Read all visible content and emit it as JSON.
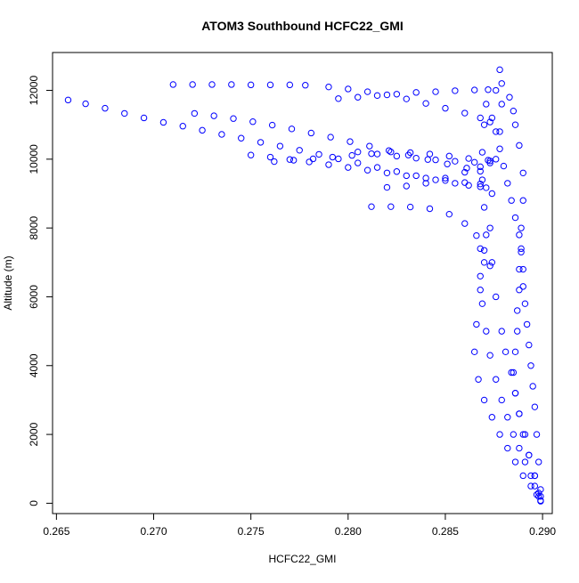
{
  "chart_data": {
    "type": "scatter",
    "title": "ATOM3 Southbound HCFC22_GMI",
    "xlabel": "HCFC22_GMI",
    "ylabel": "Altitude (m)",
    "xlim": [
      0.2648,
      0.2905
    ],
    "ylim": [
      -300,
      13100
    ],
    "x_ticks": [
      0.265,
      0.27,
      0.275,
      0.28,
      0.285,
      0.29
    ],
    "x_tick_labels": [
      "0.265",
      "0.270",
      "0.275",
      "0.280",
      "0.285",
      "0.290"
    ],
    "y_ticks": [
      0,
      2000,
      4000,
      6000,
      8000,
      10000,
      12000
    ],
    "y_tick_labels": [
      "0",
      "2000",
      "4000",
      "6000",
      "8000",
      "10000",
      "12000"
    ],
    "grid": false,
    "legend": "none",
    "marker": "open-circle",
    "color": "#0000ff",
    "series": [
      {
        "x": [
          0.2656,
          0.2665,
          0.2675,
          0.2685,
          0.2695,
          0.2705,
          0.2715,
          0.2725,
          0.2735,
          0.2745,
          0.2755,
          0.2765,
          0.2775,
          0.2785,
          0.2795,
          0.2805,
          0.2815,
          0.2825,
          0.2835,
          0.2845,
          0.2855,
          0.2862,
          0.2868,
          0.2871
        ],
        "y": [
          11720,
          11610,
          11480,
          11330,
          11200,
          11070,
          10960,
          10840,
          10720,
          10610,
          10490,
          10380,
          10260,
          10140,
          10010,
          9890,
          9760,
          9640,
          9520,
          9400,
          9300,
          9240,
          9200,
          9170
        ]
      },
      {
        "x": [
          0.271,
          0.272,
          0.273,
          0.274,
          0.275,
          0.276,
          0.277,
          0.2778,
          0.279,
          0.28,
          0.281,
          0.282,
          0.283,
          0.284,
          0.285,
          0.286,
          0.2868,
          0.2873
        ],
        "y": [
          12170,
          12170,
          12170,
          12170,
          12160,
          12160,
          12160,
          12150,
          12100,
          12040,
          11960,
          11870,
          11750,
          11620,
          11480,
          11340,
          11200,
          11080
        ]
      },
      {
        "x": [
          0.2721,
          0.2731,
          0.2741,
          0.2751,
          0.2761,
          0.2771,
          0.2781,
          0.2791,
          0.2801,
          0.2811,
          0.2821,
          0.2831,
          0.2841,
          0.2851,
          0.2861,
          0.2868
        ],
        "y": [
          11330,
          11260,
          11180,
          11090,
          10990,
          10880,
          10760,
          10640,
          10510,
          10380,
          10250,
          10120,
          9990,
          9860,
          9740,
          9650
        ]
      },
      {
        "x": [
          0.275,
          0.276,
          0.277,
          0.278,
          0.279,
          0.28,
          0.281,
          0.282,
          0.283,
          0.284,
          0.285,
          0.286,
          0.2868
        ],
        "y": [
          10120,
          10060,
          9990,
          9920,
          9840,
          9760,
          9680,
          9600,
          9520,
          9450,
          9380,
          9320,
          9280
        ]
      },
      {
        "x": [
          0.2762,
          0.2772,
          0.2782,
          0.2792,
          0.2802,
          0.2812,
          0.2822,
          0.2832,
          0.2842,
          0.2852,
          0.2862,
          0.2872
        ],
        "y": [
          9930,
          9970,
          10010,
          10060,
          10110,
          10160,
          10210,
          10190,
          10150,
          10090,
          10020,
          9970
        ]
      },
      {
        "x": [
          0.2795,
          0.2805,
          0.2815,
          0.2825,
          0.2835,
          0.2845,
          0.2855,
          0.2865,
          0.2872,
          0.2876
        ],
        "y": [
          11760,
          11800,
          11850,
          11890,
          11940,
          11960,
          11990,
          12010,
          12020,
          12000
        ]
      },
      {
        "x": [
          0.2812,
          0.2822,
          0.2832,
          0.2842,
          0.2852,
          0.286,
          0.2866,
          0.287,
          0.2873
        ],
        "y": [
          8620,
          8620,
          8610,
          8560,
          8400,
          8130,
          7780,
          7350,
          6900
        ]
      },
      {
        "x": [
          0.282,
          0.283,
          0.284,
          0.285,
          0.286,
          0.2868,
          0.2873
        ],
        "y": [
          9180,
          9220,
          9300,
          9450,
          9620,
          9780,
          9950
        ]
      },
      {
        "x": [
          0.2805,
          0.2815,
          0.2825,
          0.2835,
          0.2845,
          0.2855,
          0.2865,
          0.2873
        ],
        "y": [
          10210,
          10150,
          10090,
          10030,
          9980,
          9940,
          9910,
          9890
        ]
      },
      {
        "x": [
          0.2878,
          0.2879,
          0.2879,
          0.2878,
          0.2876,
          0.2874,
          0.2873,
          0.2874,
          0.2876,
          0.2879,
          0.2881,
          0.2884,
          0.2886,
          0.2888,
          0.2891,
          0.2893,
          0.2896,
          0.2898,
          0.2899
        ],
        "y": [
          12600,
          12200,
          11600,
          10800,
          10000,
          9000,
          8000,
          7000,
          6000,
          5000,
          4400,
          3800,
          3200,
          2600,
          2000,
          1400,
          800,
          300,
          80
        ]
      },
      {
        "x": [
          0.2871,
          0.287,
          0.2869,
          0.2869,
          0.287,
          0.2871,
          0.287,
          0.2868,
          0.2866,
          0.2865,
          0.2867,
          0.287,
          0.2874,
          0.2878,
          0.2882,
          0.2886,
          0.289,
          0.2894,
          0.2897,
          0.2899
        ],
        "y": [
          11600,
          11000,
          10200,
          9400,
          8600,
          7800,
          7000,
          6200,
          5200,
          4400,
          3600,
          3000,
          2500,
          2000,
          1600,
          1200,
          800,
          500,
          250,
          60
        ]
      },
      {
        "x": [
          0.2883,
          0.2885,
          0.2886,
          0.2888,
          0.289,
          0.289,
          0.2889,
          0.2889,
          0.2888,
          0.2888,
          0.2887,
          0.2887,
          0.2886,
          0.2885,
          0.2886,
          0.2888,
          0.289,
          0.2893,
          0.2896,
          0.2899
        ],
        "y": [
          11800,
          11400,
          11000,
          10400,
          9600,
          8800,
          8000,
          7400,
          6800,
          6200,
          5600,
          5000,
          4400,
          3800,
          3200,
          2600,
          2000,
          1400,
          800,
          200
        ]
      },
      {
        "x": [
          0.2874,
          0.2876,
          0.2878,
          0.288,
          0.2882,
          0.2884,
          0.2886,
          0.2888,
          0.2889,
          0.289,
          0.289,
          0.2891,
          0.2892,
          0.2893,
          0.2894,
          0.2895,
          0.2896,
          0.2897,
          0.2898,
          0.2899
        ],
        "y": [
          11200,
          10800,
          10300,
          9800,
          9300,
          8800,
          8300,
          7800,
          7300,
          6800,
          6300,
          5800,
          5200,
          4600,
          4000,
          3400,
          2800,
          2000,
          1200,
          400
        ]
      },
      {
        "x": [
          0.2868,
          0.2868,
          0.2869,
          0.2871,
          0.2873,
          0.2876,
          0.2879,
          0.2882,
          0.2885,
          0.2888,
          0.2891,
          0.2894,
          0.2896,
          0.2898
        ],
        "y": [
          7400,
          6600,
          5800,
          5000,
          4300,
          3600,
          3000,
          2500,
          2000,
          1600,
          1200,
          800,
          500,
          200
        ]
      }
    ]
  }
}
